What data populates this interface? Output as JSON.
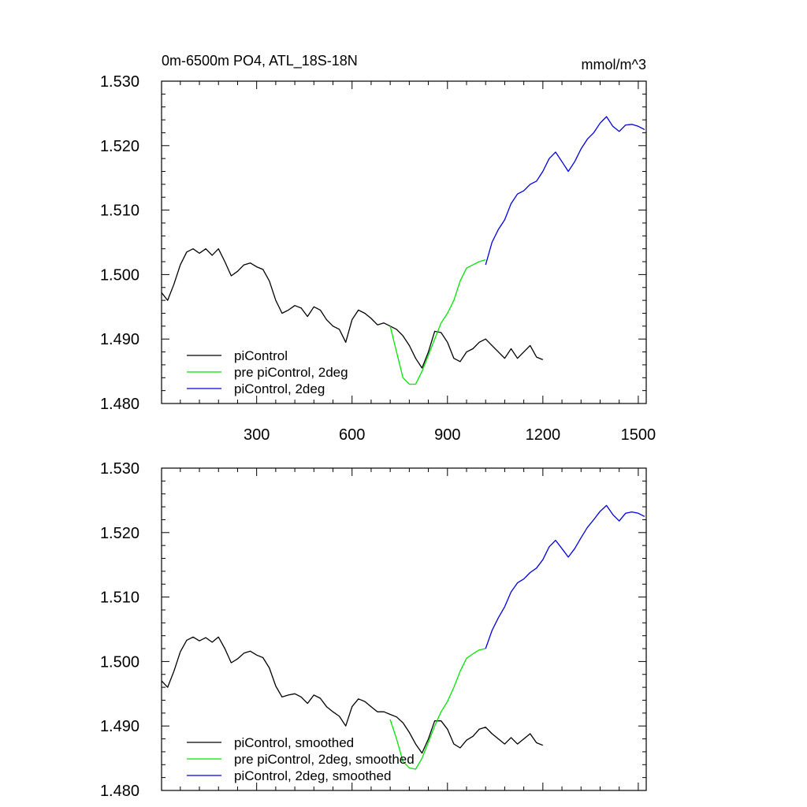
{
  "header": {
    "title": "0m-6500m PO4, ATL_18S-18N",
    "units": "mmol/m^3"
  },
  "colors": {
    "piControl": "#000000",
    "pre_piControl_2deg": "#00e600",
    "piControl_2deg": "#0000e0"
  },
  "chart_data": [
    {
      "type": "line",
      "title": "0m-6500m PO4, ATL_18S-18N",
      "units_label": "mmol/m^3",
      "xlim": [
        1,
        1525
      ],
      "ylim": [
        1.48,
        1.53
      ],
      "x_ticks": [
        300,
        600,
        900,
        1200,
        1500
      ],
      "x_tick_labels": [
        "300",
        "600",
        "900",
        "1200",
        "1500"
      ],
      "y_ticks": [
        1.48,
        1.49,
        1.5,
        1.51,
        1.52,
        1.53
      ],
      "y_tick_labels": [
        "1.480",
        "1.490",
        "1.500",
        "1.510",
        "1.520",
        "1.530"
      ],
      "legend_position": "bottom-left",
      "series": [
        {
          "name": "piControl",
          "color": "#000000",
          "x": [
            1,
            20,
            40,
            60,
            80,
            100,
            120,
            140,
            160,
            180,
            200,
            220,
            240,
            260,
            280,
            300,
            320,
            340,
            360,
            380,
            400,
            420,
            440,
            460,
            480,
            500,
            520,
            540,
            560,
            580,
            600,
            620,
            640,
            660,
            680,
            700,
            720,
            740,
            760,
            780,
            800,
            820,
            840,
            860,
            880,
            900,
            920,
            940,
            960,
            980,
            1000,
            1020,
            1040,
            1060,
            1080,
            1100,
            1120,
            1140,
            1160,
            1180,
            1200
          ],
          "y": [
            1.4972,
            1.496,
            1.4985,
            1.5015,
            1.5035,
            1.504,
            1.5033,
            1.504,
            1.503,
            1.504,
            1.502,
            1.4998,
            1.5005,
            1.5015,
            1.5018,
            1.5012,
            1.5008,
            1.499,
            1.496,
            1.494,
            1.4945,
            1.4952,
            1.4948,
            1.4935,
            1.495,
            1.4945,
            1.493,
            1.492,
            1.4915,
            1.4895,
            1.493,
            1.4945,
            1.494,
            1.4932,
            1.4922,
            1.4925,
            1.492,
            1.4915,
            1.4905,
            1.489,
            1.487,
            1.4855,
            1.488,
            1.4912,
            1.491,
            1.4895,
            1.487,
            1.4865,
            1.488,
            1.4885,
            1.4895,
            1.49,
            1.489,
            1.488,
            1.487,
            1.4885,
            1.487,
            1.488,
            1.489,
            1.4872,
            1.4868
          ]
        },
        {
          "name": "pre piControl, 2deg",
          "color": "#00e600",
          "x": [
            720,
            740,
            760,
            780,
            800,
            820,
            840,
            860,
            880,
            900,
            920,
            940,
            960,
            980,
            1000,
            1020
          ],
          "y": [
            1.492,
            1.488,
            1.484,
            1.483,
            1.483,
            1.485,
            1.4875,
            1.49,
            1.4925,
            1.494,
            1.496,
            1.499,
            1.501,
            1.5015,
            1.502,
            1.5023
          ]
        },
        {
          "name": "piControl, 2deg",
          "color": "#0000e0",
          "x": [
            1020,
            1040,
            1060,
            1080,
            1100,
            1120,
            1140,
            1160,
            1180,
            1200,
            1220,
            1240,
            1260,
            1280,
            1300,
            1320,
            1340,
            1360,
            1380,
            1400,
            1420,
            1440,
            1460,
            1480,
            1500,
            1520
          ],
          "y": [
            1.5015,
            1.505,
            1.507,
            1.5085,
            1.511,
            1.5125,
            1.513,
            1.514,
            1.5145,
            1.516,
            1.518,
            1.519,
            1.5175,
            1.516,
            1.5175,
            1.5195,
            1.521,
            1.522,
            1.5235,
            1.5245,
            1.523,
            1.5222,
            1.5232,
            1.5233,
            1.523,
            1.5225
          ]
        }
      ],
      "legend_entries": [
        "piControl",
        "pre piControl, 2deg",
        "piControl, 2deg"
      ]
    },
    {
      "type": "line",
      "xlim": [
        1,
        1525
      ],
      "ylim": [
        1.48,
        1.53
      ],
      "x_ticks": [
        300,
        600,
        900,
        1200,
        1500
      ],
      "y_ticks": [
        1.48,
        1.49,
        1.5,
        1.51,
        1.52,
        1.53
      ],
      "y_tick_labels": [
        "1.480",
        "1.490",
        "1.500",
        "1.510",
        "1.520",
        "1.530"
      ],
      "legend_position": "bottom-left",
      "series": [
        {
          "name": "piControl, smoothed",
          "color": "#000000",
          "x": [
            1,
            20,
            40,
            60,
            80,
            100,
            120,
            140,
            160,
            180,
            200,
            220,
            240,
            260,
            280,
            300,
            320,
            340,
            360,
            380,
            400,
            420,
            440,
            460,
            480,
            500,
            520,
            540,
            560,
            580,
            600,
            620,
            640,
            660,
            680,
            700,
            720,
            740,
            760,
            780,
            800,
            820,
            840,
            860,
            880,
            900,
            920,
            940,
            960,
            980,
            1000,
            1020,
            1040,
            1060,
            1080,
            1100,
            1120,
            1140,
            1160,
            1180,
            1200
          ],
          "y": [
            1.497,
            1.496,
            1.4985,
            1.5015,
            1.5033,
            1.5038,
            1.5032,
            1.5037,
            1.503,
            1.5038,
            1.502,
            1.4998,
            1.5004,
            1.5013,
            1.5016,
            1.501,
            1.5006,
            1.499,
            1.4962,
            1.4945,
            1.4948,
            1.495,
            1.4945,
            1.4935,
            1.4948,
            1.4943,
            1.493,
            1.4922,
            1.4915,
            1.49,
            1.493,
            1.4942,
            1.4938,
            1.493,
            1.4922,
            1.4922,
            1.4918,
            1.4914,
            1.4905,
            1.489,
            1.4872,
            1.4858,
            1.488,
            1.4908,
            1.4908,
            1.4895,
            1.4872,
            1.4866,
            1.4878,
            1.4884,
            1.4895,
            1.4898,
            1.4888,
            1.488,
            1.4872,
            1.4882,
            1.4872,
            1.488,
            1.4888,
            1.4874,
            1.487
          ]
        },
        {
          "name": "pre piControl, 2deg, smoothed",
          "color": "#00e600",
          "x": [
            720,
            740,
            760,
            780,
            800,
            820,
            840,
            860,
            880,
            900,
            920,
            940,
            960,
            980,
            1000,
            1020
          ],
          "y": [
            1.491,
            1.488,
            1.4845,
            1.4835,
            1.4833,
            1.485,
            1.4875,
            1.49,
            1.4922,
            1.4938,
            1.496,
            1.4985,
            1.5005,
            1.5012,
            1.5018,
            1.502
          ]
        },
        {
          "name": "piControl, 2deg, smoothed",
          "color": "#0000e0",
          "x": [
            1020,
            1040,
            1060,
            1080,
            1100,
            1120,
            1140,
            1160,
            1180,
            1200,
            1220,
            1240,
            1260,
            1280,
            1300,
            1320,
            1340,
            1360,
            1380,
            1400,
            1420,
            1440,
            1460,
            1480,
            1500,
            1520
          ],
          "y": [
            1.502,
            1.5048,
            1.5068,
            1.5085,
            1.5108,
            1.5122,
            1.5128,
            1.5138,
            1.5145,
            1.5158,
            1.5178,
            1.5188,
            1.5175,
            1.5162,
            1.5175,
            1.5192,
            1.5208,
            1.522,
            1.5233,
            1.5242,
            1.5228,
            1.5218,
            1.523,
            1.5232,
            1.523,
            1.5225
          ]
        }
      ],
      "legend_entries": [
        "piControl, smoothed",
        "pre piControl, 2deg, smoothed",
        "piControl, 2deg, smoothed"
      ]
    }
  ]
}
